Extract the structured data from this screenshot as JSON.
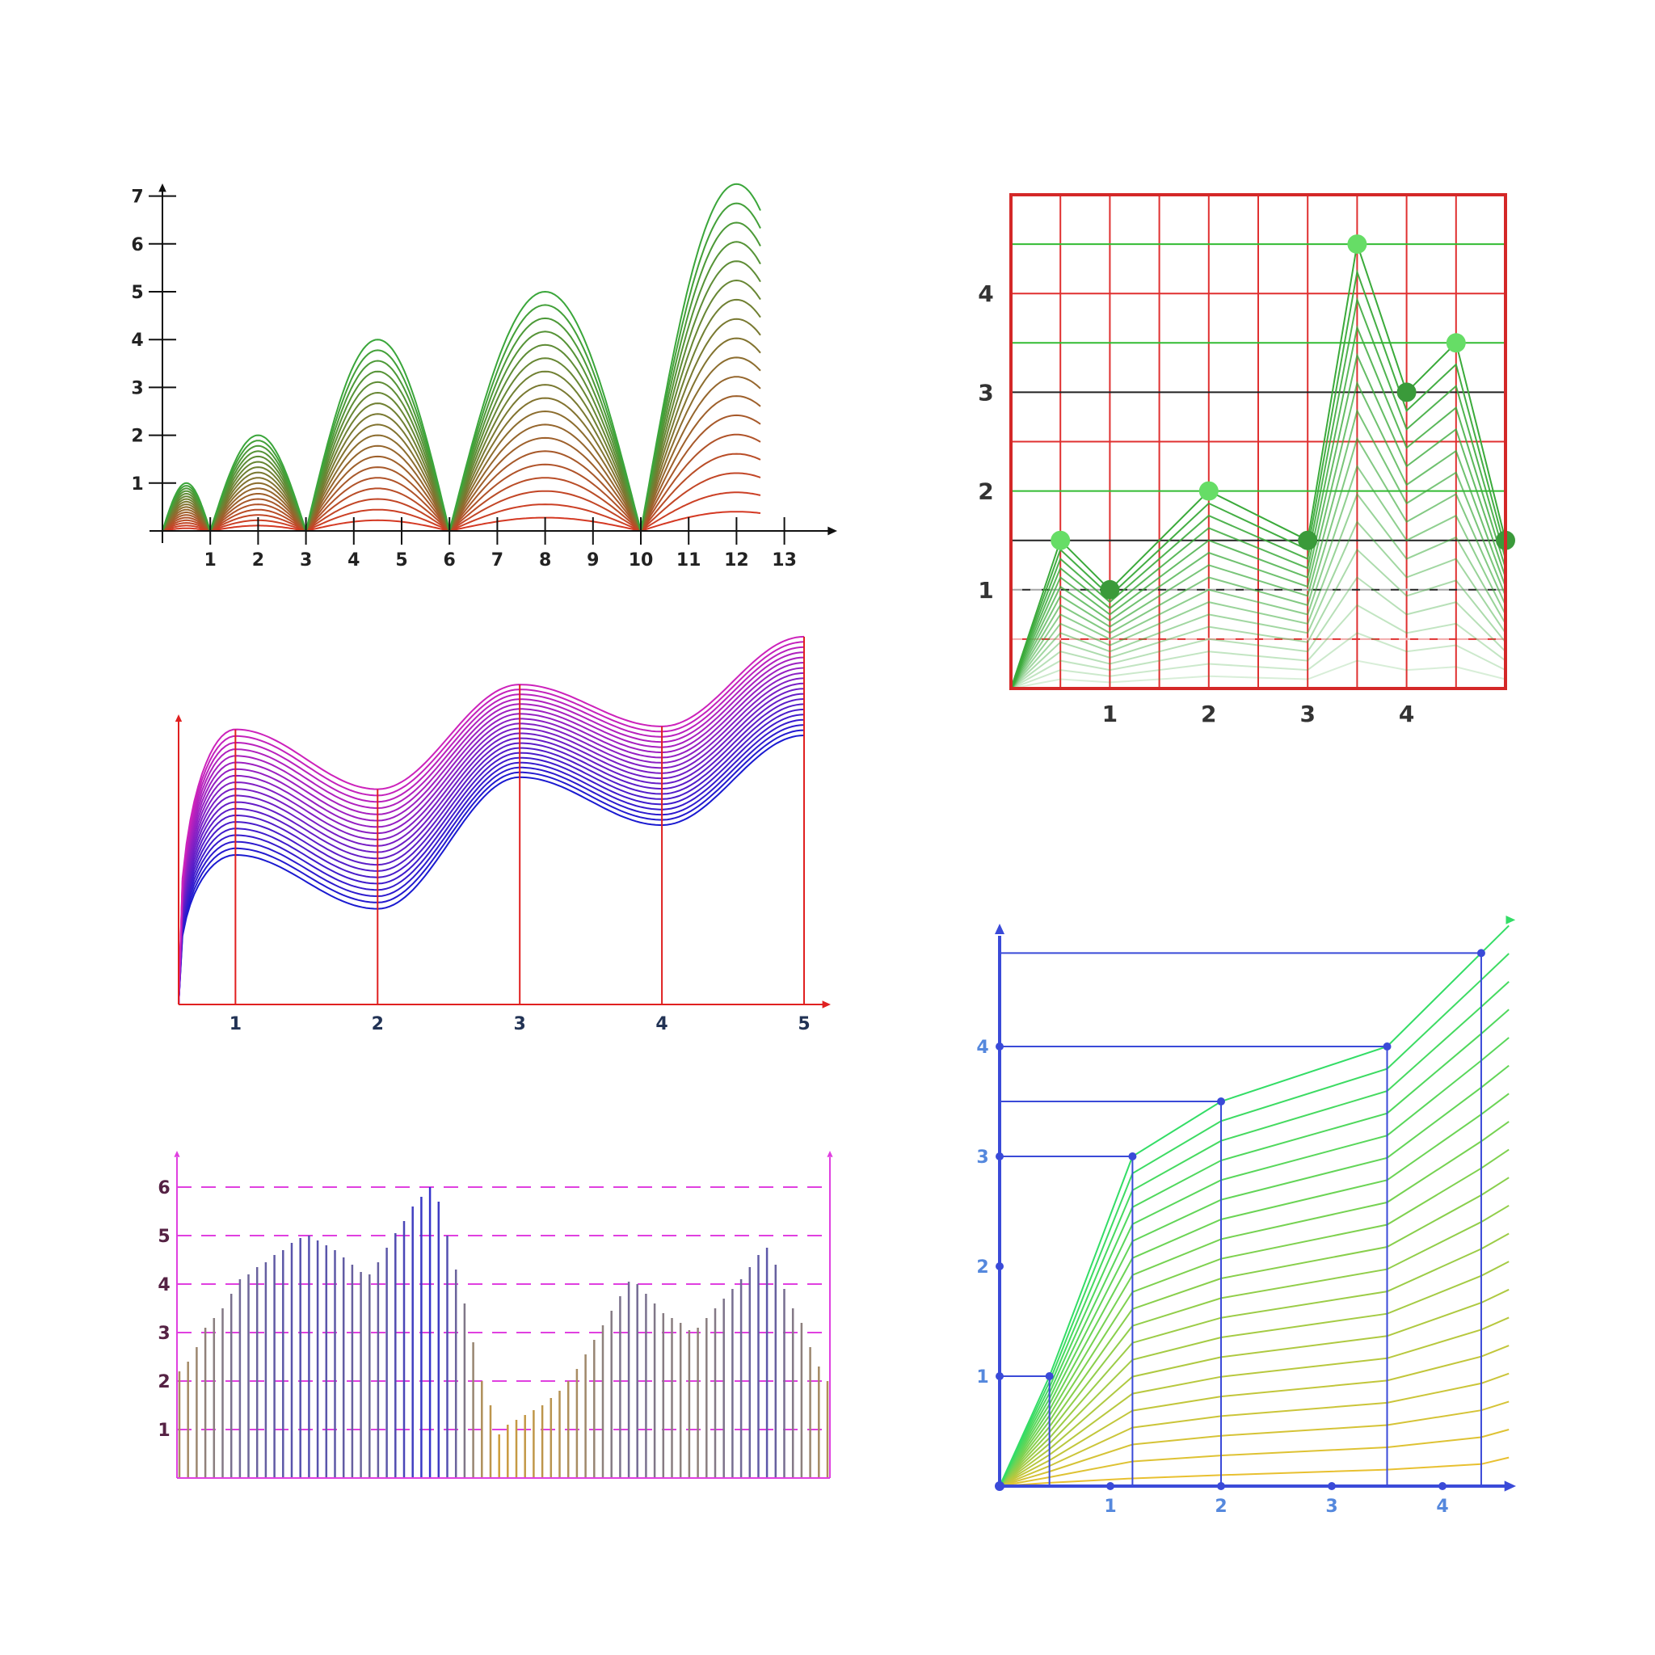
{
  "chart_data": [
    {
      "id": "arches",
      "type": "line",
      "style": "stacked arches, red to green gradient",
      "colors": {
        "low": "#dd3322",
        "high": "#3aa63a",
        "axis": "#111111",
        "label": "#222222"
      },
      "x_ticks": [
        "1",
        "2",
        "3",
        "4",
        "5",
        "6",
        "7",
        "8",
        "9",
        "10",
        "11",
        "12",
        "13"
      ],
      "y_ticks": [
        "1",
        "2",
        "3",
        "4",
        "5",
        "6",
        "7"
      ],
      "xlim": [
        0,
        14
      ],
      "ylim": [
        0,
        7.5
      ],
      "line_count": 18,
      "arches": [
        {
          "x0": 0,
          "x1": 1,
          "peak": 1
        },
        {
          "x0": 1,
          "x1": 3,
          "peak": 2
        },
        {
          "x0": 3,
          "x1": 6,
          "peak": 4
        },
        {
          "x0": 6,
          "x1": 10,
          "peak": 5
        },
        {
          "x0": 10,
          "x1": 14,
          "peak": 7.25,
          "clip_x": 12.5
        }
      ]
    },
    {
      "id": "grid-peaks",
      "type": "line",
      "style": "stacked lines with markers on red grid",
      "colors": {
        "grid": "#e03030",
        "hline_green": "#33bb33",
        "hline_dark": "#222222",
        "line": "#3aaa3a",
        "marker_light": "#66dd66",
        "marker_dark": "#3a9a3a",
        "label": "#333333"
      },
      "x_ticks": [
        "1",
        "2",
        "3",
        "4"
      ],
      "y_ticks": [
        "1",
        "2",
        "3",
        "4"
      ],
      "xlim": [
        0,
        5
      ],
      "ylim": [
        0,
        5
      ],
      "line_count": 16,
      "x": [
        0,
        0.5,
        1,
        2,
        3,
        3.5,
        4,
        4.5,
        5
      ],
      "y": [
        0,
        1.5,
        1,
        2,
        1.5,
        4.5,
        3,
        3.5,
        1.5
      ],
      "marker_tones": [
        "",
        "light",
        "dark",
        "light",
        "dark",
        "light",
        "dark",
        "light",
        "dark"
      ]
    },
    {
      "id": "waves",
      "type": "line",
      "style": "stacked smooth curves, blue to magenta",
      "colors": {
        "low": "#1a1ad0",
        "high": "#cc22bb",
        "axis": "#e02020",
        "label": "#223355"
      },
      "x_ticks": [
        "1",
        "2",
        "3",
        "4",
        "5"
      ],
      "xlim": [
        0.6,
        5.2
      ],
      "ylim": [
        0,
        12.5
      ],
      "line_count": 20,
      "x": [
        0.6,
        1,
        2,
        3,
        4,
        5
      ],
      "base": [
        0,
        5.0,
        3.2,
        7.6,
        6.0,
        9.0
      ],
      "top": [
        0,
        9.2,
        7.2,
        10.7,
        9.3,
        12.3
      ]
    },
    {
      "id": "bars",
      "type": "bar",
      "style": "dense vertical lines, orange/grey/blue gradient",
      "colors": {
        "low": "#e8a820",
        "mid": "#8a7f80",
        "high": "#3434cc",
        "grid": "#e040e0",
        "label": "#552244"
      },
      "y_ticks": [
        "1",
        "2",
        "3",
        "4",
        "5",
        "6"
      ],
      "ylim": [
        0,
        6.5
      ],
      "values": [
        2.2,
        2.4,
        2.7,
        3.1,
        3.3,
        3.5,
        3.8,
        4.1,
        4.2,
        4.35,
        4.45,
        4.6,
        4.7,
        4.85,
        4.95,
        5.0,
        4.9,
        4.8,
        4.7,
        4.55,
        4.4,
        4.25,
        4.2,
        4.45,
        4.75,
        5.05,
        5.3,
        5.6,
        5.8,
        6.0,
        5.7,
        5.0,
        4.3,
        3.6,
        2.8,
        2.0,
        1.5,
        0.9,
        1.1,
        1.2,
        1.3,
        1.4,
        1.5,
        1.65,
        1.8,
        2.0,
        2.25,
        2.55,
        2.85,
        3.15,
        3.45,
        3.75,
        4.05,
        4.0,
        3.8,
        3.6,
        3.4,
        3.3,
        3.2,
        3.05,
        3.1,
        3.3,
        3.5,
        3.7,
        3.9,
        4.1,
        4.35,
        4.6,
        4.75,
        4.4,
        3.9,
        3.5,
        3.2,
        2.7,
        2.3,
        2.0
      ]
    },
    {
      "id": "fan",
      "type": "line",
      "style": "fan of lines with reference brackets, green to yellow",
      "colors": {
        "axis": "#3a4ad8",
        "high": "#33dd66",
        "low": "#e8c030",
        "label": "#5588dd"
      },
      "x_ticks": [
        "1",
        "2",
        "3",
        "4"
      ],
      "y_ticks": [
        "1",
        "2",
        "3",
        "4"
      ],
      "xlim": [
        0,
        4.7
      ],
      "ylim": [
        0,
        5
      ],
      "line_count": 20,
      "x": [
        0,
        0.45,
        1.2,
        2,
        3.5,
        4.35
      ],
      "top": [
        0,
        1,
        3,
        3.5,
        4,
        4.85
      ],
      "bottom": [
        0,
        0.03,
        0.07,
        0.1,
        0.15,
        0.2
      ],
      "x_tail": 4.6,
      "top_tail": 5.1,
      "bottom_tail": 0.26,
      "brackets": [
        [
          0.45,
          1
        ],
        [
          1.2,
          3
        ],
        [
          2,
          3.5
        ],
        [
          3.5,
          4
        ],
        [
          4.35,
          4.85
        ]
      ]
    }
  ]
}
